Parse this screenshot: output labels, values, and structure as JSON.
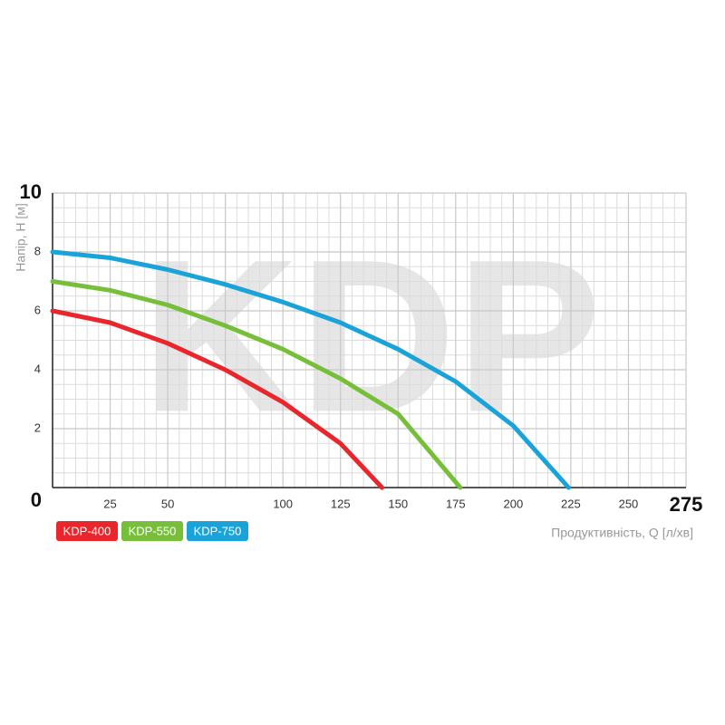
{
  "chart_data": {
    "type": "line",
    "watermark": "KDP",
    "ylabel": "Напір, Н [м]",
    "xlabel": "Продуктивність, Q [л/хв]",
    "xlim": [
      0,
      275
    ],
    "xticks": [
      0,
      25,
      50,
      75,
      100,
      125,
      150,
      175,
      200,
      225,
      250,
      275
    ],
    "xtick_labels": [
      null,
      "25",
      "50",
      null,
      "100",
      "125",
      "150",
      "175",
      "200",
      "225",
      "250",
      "275"
    ],
    "ylim": [
      0,
      10
    ],
    "yticks": [
      0,
      2,
      4,
      6,
      8,
      10
    ],
    "grid": true,
    "series": [
      {
        "name": "KDP-400",
        "color": "#e8262c",
        "x": [
          0,
          25,
          50,
          75,
          100,
          125,
          143
        ],
        "values": [
          6,
          5.6,
          4.9,
          4.0,
          2.9,
          1.5,
          0
        ]
      },
      {
        "name": "KDP-550",
        "color": "#77bf3a",
        "x": [
          0,
          25,
          50,
          75,
          100,
          125,
          150,
          177
        ],
        "values": [
          7,
          6.7,
          6.2,
          5.5,
          4.7,
          3.7,
          2.5,
          0
        ]
      },
      {
        "name": "KDP-750",
        "color": "#1aa3d9",
        "x": [
          0,
          25,
          50,
          75,
          100,
          125,
          150,
          175,
          200,
          224
        ],
        "values": [
          8,
          7.8,
          7.4,
          6.9,
          6.3,
          5.6,
          4.7,
          3.6,
          2.1,
          0
        ]
      }
    ]
  }
}
